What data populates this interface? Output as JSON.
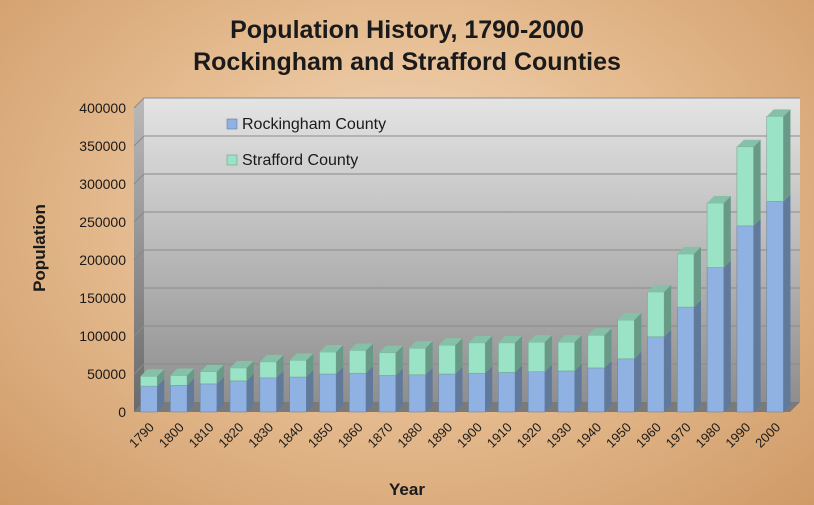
{
  "chart_data": {
    "type": "bar",
    "stacked": true,
    "three_d": true,
    "title": [
      "Population History, 1790-2000",
      "Rockingham and Strafford Counties"
    ],
    "xlabel": "Year",
    "ylabel": "Population",
    "ylim": [
      0,
      400000
    ],
    "yticks": [
      0,
      50000,
      100000,
      150000,
      200000,
      250000,
      300000,
      350000,
      400000
    ],
    "grid": true,
    "legend_position": "top-left",
    "categories": [
      "1790",
      "1800",
      "1810",
      "1820",
      "1830",
      "1840",
      "1850",
      "1860",
      "1870",
      "1880",
      "1890",
      "1900",
      "1910",
      "1920",
      "1930",
      "1940",
      "1950",
      "1960",
      "1970",
      "1980",
      "1990",
      "2000"
    ],
    "series": [
      {
        "name": "Rockingham County",
        "color": "#8fb2e2",
        "values": [
          34000,
          35000,
          37000,
          41000,
          45000,
          46000,
          50000,
          51000,
          48000,
          49000,
          50000,
          51000,
          52000,
          53000,
          54000,
          58000,
          70000,
          99000,
          138000,
          190000,
          245000,
          277000
        ]
      },
      {
        "name": "Strafford County",
        "color": "#9be3c6",
        "values": [
          13000,
          13000,
          16000,
          17000,
          21000,
          22000,
          29000,
          30000,
          30000,
          35000,
          38000,
          40000,
          39000,
          39000,
          38000,
          43000,
          51000,
          59000,
          70000,
          85000,
          104000,
          112000
        ]
      }
    ]
  }
}
